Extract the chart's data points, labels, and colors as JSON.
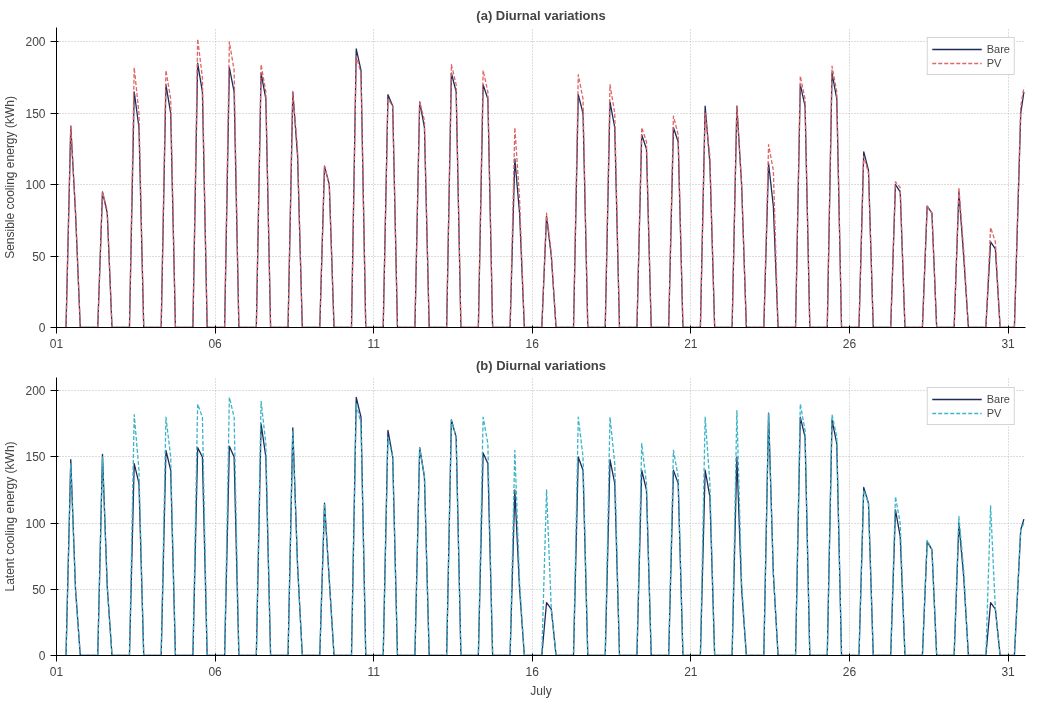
{
  "chart_data": [
    {
      "type": "line",
      "title": "(a) Diurnal variations",
      "ylabel": "Sensible cooling energy (kWh)",
      "x": [
        1.3,
        1.45,
        1.6,
        1.75,
        2.3,
        2.45,
        2.6,
        2.75,
        3.3,
        3.45,
        3.6,
        3.75,
        4.3,
        4.45,
        4.6,
        4.75,
        5.3,
        5.45,
        5.6,
        5.75,
        6.3,
        6.45,
        6.6,
        6.75,
        7.3,
        7.45,
        7.6,
        7.75,
        8.3,
        8.45,
        8.6,
        8.75,
        9.3,
        9.45,
        9.6,
        9.75,
        10.3,
        10.45,
        10.6,
        10.75,
        11.3,
        11.45,
        11.6,
        11.75,
        12.3,
        12.45,
        12.6,
        12.75,
        13.3,
        13.45,
        13.6,
        13.75,
        14.3,
        14.45,
        14.6,
        14.75,
        15.3,
        15.45,
        15.6,
        15.75,
        16.3,
        16.45,
        16.6,
        16.75,
        17.3,
        17.45,
        17.6,
        17.75,
        18.3,
        18.45,
        18.6,
        18.75,
        19.3,
        19.45,
        19.6,
        19.75,
        20.3,
        20.45,
        20.6,
        20.75,
        21.3,
        21.45,
        21.6,
        21.75,
        22.3,
        22.45,
        22.6,
        22.75,
        23.3,
        23.45,
        23.6,
        23.75,
        24.3,
        24.45,
        24.6,
        24.75,
        25.3,
        25.45,
        25.6,
        25.75,
        26.3,
        26.45,
        26.6,
        26.75,
        27.3,
        27.45,
        27.6,
        27.75,
        28.3,
        28.45,
        28.6,
        28.75,
        29.3,
        29.45,
        29.6,
        29.75,
        30.3,
        30.45,
        30.6,
        30.75,
        31.2,
        31.4,
        31.5
      ],
      "series": [
        {
          "name": "Bare",
          "color": "#1f2a5a",
          "values": [
            0,
            141,
            80,
            0,
            0,
            95,
            80,
            0,
            0,
            165,
            140,
            0,
            0,
            170,
            150,
            0,
            0,
            185,
            165,
            0,
            0,
            182,
            165,
            0,
            0,
            178,
            160,
            0,
            0,
            165,
            120,
            0,
            0,
            113,
            100,
            0,
            0,
            195,
            180,
            0,
            0,
            163,
            155,
            0,
            0,
            158,
            140,
            0,
            0,
            178,
            165,
            0,
            0,
            170,
            160,
            0,
            0,
            118,
            80,
            0,
            0,
            78,
            50,
            0,
            0,
            163,
            150,
            0,
            0,
            158,
            140,
            0,
            0,
            135,
            125,
            0,
            0,
            140,
            130,
            0,
            0,
            155,
            115,
            0,
            0,
            155,
            100,
            0,
            0,
            115,
            85,
            0,
            0,
            170,
            155,
            0,
            0,
            178,
            160,
            0,
            0,
            123,
            110,
            0,
            0,
            100,
            95,
            0,
            0,
            85,
            80,
            0,
            0,
            95,
            50,
            0,
            0,
            60,
            55,
            0,
            0,
            150,
            165
          ]
        },
        {
          "name": "PV",
          "color": "#e06666",
          "line_style": "dashed",
          "values": [
            0,
            141,
            82,
            0,
            0,
            95,
            82,
            0,
            0,
            182,
            150,
            0,
            0,
            180,
            160,
            0,
            0,
            202,
            175,
            0,
            0,
            200,
            180,
            0,
            0,
            184,
            165,
            0,
            0,
            165,
            125,
            0,
            0,
            113,
            100,
            0,
            0,
            190,
            178,
            0,
            0,
            160,
            155,
            0,
            0,
            158,
            145,
            0,
            0,
            184,
            170,
            0,
            0,
            180,
            165,
            0,
            0,
            140,
            90,
            0,
            0,
            80,
            52,
            0,
            0,
            177,
            160,
            0,
            0,
            170,
            150,
            0,
            0,
            140,
            130,
            0,
            0,
            148,
            135,
            0,
            0,
            150,
            120,
            0,
            0,
            155,
            100,
            0,
            0,
            128,
            110,
            0,
            0,
            176,
            160,
            0,
            0,
            183,
            165,
            0,
            0,
            120,
            108,
            0,
            0,
            102,
            98,
            0,
            0,
            85,
            80,
            0,
            0,
            98,
            55,
            0,
            0,
            70,
            60,
            0,
            0,
            155,
            168
          ]
        }
      ],
      "xlim": [
        1,
        31.55
      ],
      "xticks": [
        {
          "value": 1,
          "label": "01"
        },
        {
          "value": 6,
          "label": "06"
        },
        {
          "value": 11,
          "label": "11"
        },
        {
          "value": 16,
          "label": "16"
        },
        {
          "value": 21,
          "label": "21"
        },
        {
          "value": 26,
          "label": "26"
        },
        {
          "value": 31,
          "label": "31"
        }
      ],
      "ylim": [
        0,
        210
      ],
      "yticks": [
        0,
        50,
        100,
        150,
        200
      ],
      "grid": true,
      "legend": "top right",
      "marker": "none"
    },
    {
      "type": "line",
      "title": "(b) Diurnal variations",
      "ylabel": "Latent cooling energy (kWh)",
      "xlabel": "July",
      "x": [
        1.3,
        1.45,
        1.6,
        1.75,
        2.3,
        2.45,
        2.6,
        2.75,
        3.3,
        3.45,
        3.6,
        3.75,
        4.3,
        4.45,
        4.6,
        4.75,
        5.3,
        5.45,
        5.6,
        5.75,
        6.3,
        6.45,
        6.6,
        6.75,
        7.3,
        7.45,
        7.6,
        7.75,
        8.3,
        8.45,
        8.6,
        8.75,
        9.3,
        9.45,
        9.6,
        9.75,
        10.3,
        10.45,
        10.6,
        10.75,
        11.3,
        11.45,
        11.6,
        11.75,
        12.3,
        12.45,
        12.6,
        12.75,
        13.3,
        13.45,
        13.6,
        13.75,
        14.3,
        14.45,
        14.6,
        14.75,
        15.3,
        15.45,
        15.6,
        15.75,
        16.3,
        16.45,
        16.6,
        16.75,
        17.3,
        17.45,
        17.6,
        17.75,
        18.3,
        18.45,
        18.6,
        18.75,
        19.3,
        19.45,
        19.6,
        19.75,
        20.3,
        20.45,
        20.6,
        20.75,
        21.3,
        21.45,
        21.6,
        21.75,
        22.3,
        22.45,
        22.6,
        22.75,
        23.3,
        23.45,
        23.6,
        23.75,
        24.3,
        24.45,
        24.6,
        24.75,
        25.3,
        25.45,
        25.6,
        25.75,
        26.3,
        26.45,
        26.6,
        26.75,
        27.3,
        27.45,
        27.6,
        27.75,
        28.3,
        28.45,
        28.6,
        28.75,
        29.3,
        29.45,
        29.6,
        29.75,
        30.3,
        30.45,
        30.6,
        30.75,
        31.2,
        31.4,
        31.5
      ],
      "series": [
        {
          "name": "Bare",
          "color": "#1f2a5a",
          "values": [
            0,
            148,
            50,
            0,
            0,
            152,
            52,
            0,
            0,
            145,
            130,
            0,
            0,
            155,
            140,
            0,
            0,
            157,
            150,
            0,
            0,
            158,
            150,
            0,
            0,
            175,
            150,
            0,
            0,
            172,
            68,
            0,
            0,
            115,
            57,
            0,
            0,
            195,
            180,
            0,
            0,
            170,
            150,
            0,
            0,
            157,
            135,
            0,
            0,
            178,
            165,
            0,
            0,
            153,
            145,
            0,
            0,
            125,
            50,
            0,
            0,
            40,
            35,
            0,
            0,
            150,
            140,
            0,
            0,
            148,
            130,
            0,
            0,
            140,
            125,
            0,
            0,
            140,
            130,
            0,
            0,
            140,
            120,
            0,
            0,
            150,
            50,
            0,
            0,
            183,
            62,
            0,
            0,
            180,
            165,
            0,
            0,
            178,
            160,
            0,
            0,
            127,
            115,
            0,
            0,
            110,
            90,
            0,
            0,
            86,
            80,
            0,
            0,
            100,
            60,
            0,
            0,
            40,
            35,
            0,
            0,
            95,
            103
          ]
        },
        {
          "name": "PV",
          "color": "#3cb4c8",
          "line_style": "dashed",
          "values": [
            0,
            145,
            50,
            0,
            0,
            150,
            52,
            0,
            0,
            182,
            140,
            0,
            0,
            180,
            150,
            0,
            0,
            190,
            180,
            0,
            0,
            195,
            180,
            0,
            0,
            192,
            160,
            0,
            0,
            170,
            68,
            0,
            0,
            115,
            57,
            0,
            0,
            190,
            175,
            0,
            0,
            165,
            150,
            0,
            0,
            157,
            135,
            0,
            0,
            178,
            165,
            0,
            0,
            180,
            160,
            0,
            0,
            155,
            55,
            0,
            0,
            125,
            35,
            0,
            0,
            180,
            150,
            0,
            0,
            180,
            145,
            0,
            0,
            160,
            130,
            0,
            0,
            155,
            135,
            0,
            0,
            180,
            130,
            0,
            0,
            185,
            55,
            0,
            0,
            183,
            62,
            0,
            0,
            190,
            170,
            0,
            0,
            182,
            165,
            0,
            0,
            125,
            115,
            0,
            0,
            120,
            100,
            0,
            0,
            87,
            80,
            0,
            0,
            105,
            65,
            0,
            0,
            113,
            35,
            0,
            0,
            95,
            100
          ]
        }
      ],
      "xlim": [
        1,
        31.55
      ],
      "xticks": [
        {
          "value": 1,
          "label": "01"
        },
        {
          "value": 6,
          "label": "06"
        },
        {
          "value": 11,
          "label": "11"
        },
        {
          "value": 16,
          "label": "16"
        },
        {
          "value": 21,
          "label": "21"
        },
        {
          "value": 26,
          "label": "26"
        },
        {
          "value": 31,
          "label": "31"
        }
      ],
      "ylim": [
        0,
        210
      ],
      "yticks": [
        0,
        50,
        100,
        150,
        200
      ],
      "grid": true,
      "legend": "top right",
      "marker": "none"
    }
  ]
}
